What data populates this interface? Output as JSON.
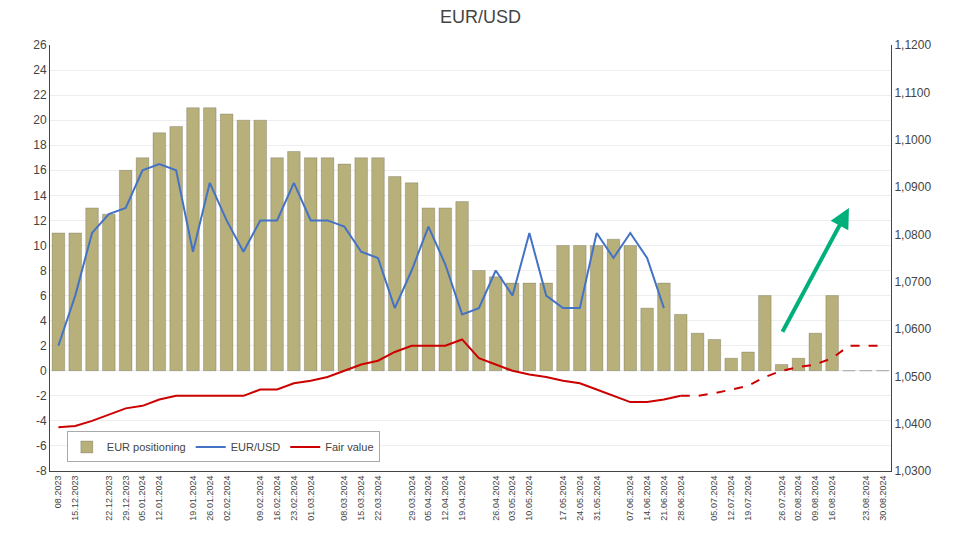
{
  "chart_data": {
    "type": "bar",
    "title": "EUR/USD",
    "categories": [
      "08.2023",
      "15.12.2023",
      null,
      "22.12.2023",
      "29.12.2023",
      "05.01.2024",
      "12.01.2024",
      null,
      "19.01.2024",
      "26.01.2024",
      "02.02.2024",
      null,
      "09.02.2024",
      "16.02.2024",
      "23.02.2024",
      "01.03.2024",
      null,
      "08.03.2024",
      "15.03.2024",
      "22.03.2024",
      null,
      "29.03.2024",
      "05.04.2024",
      "12.04.2024",
      "19.04.2024",
      null,
      "26.04.2024",
      "03.05.2024",
      "10.05.2024",
      null,
      "17.05.2024",
      "24.05.2024",
      "31.05.2024",
      null,
      "07.06.2024",
      "14.06.2024",
      "21.06.2024",
      "28.06.2024",
      null,
      "05.07.2024",
      "12.07.2024",
      "19.07.2024",
      null,
      "26.07.2024",
      "02.08.2024",
      "09.08.2024",
      "16.08.2024",
      null,
      "23.08.2024",
      "30.08.2024"
    ],
    "series": [
      {
        "name": "EUR positioning",
        "type": "bar",
        "color": "#b8b07a",
        "values": [
          11,
          11,
          13,
          12.5,
          16,
          17,
          19,
          19.5,
          21,
          21,
          20.5,
          20,
          20,
          17,
          17.5,
          17,
          17,
          16.5,
          17,
          17,
          15.5,
          15,
          13,
          13,
          13.5,
          8,
          7.5,
          7,
          7,
          7,
          10,
          10,
          10,
          10.5,
          10,
          5,
          7,
          4.5,
          3,
          2.5,
          1,
          1.5,
          6,
          0.5,
          1,
          3,
          6,
          0,
          0,
          0
        ]
      },
      {
        "name": "EUR/USD",
        "type": "line",
        "color": "#4472c4",
        "line_style": "solid",
        "values": [
          2,
          6,
          11,
          12.5,
          13,
          16,
          16.5,
          16,
          9.5,
          15,
          12,
          9.5,
          12,
          12,
          15,
          12,
          12,
          11.5,
          9.5,
          9,
          5,
          8,
          11.5,
          8.5,
          4.5,
          5,
          8,
          6,
          11,
          6,
          5,
          5,
          11,
          9,
          11,
          9,
          5,
          null,
          null,
          null,
          null,
          null,
          null,
          null,
          null,
          null,
          null,
          null,
          null,
          null
        ]
      },
      {
        "name": "Fair value",
        "type": "line",
        "color": "#cc0000",
        "line_style": "solid",
        "values": [
          -4.5,
          -4.4,
          -4,
          -3.5,
          -3,
          -2.8,
          -2.3,
          -2,
          -2,
          -2,
          -2,
          -2,
          -1.5,
          -1.5,
          -1,
          -0.8,
          -0.5,
          0,
          0.5,
          0.8,
          1.5,
          2,
          2,
          2,
          2.5,
          1,
          0.5,
          0,
          -0.3,
          -0.5,
          -0.8,
          -1,
          -1.5,
          -2,
          -2.5,
          -2.5,
          -2.3,
          -2,
          null,
          null,
          null,
          null,
          null,
          null,
          null,
          null,
          null,
          null,
          null,
          null
        ]
      },
      {
        "name": "Fair value",
        "type": "line",
        "color": "#cc0000",
        "line_style": "dashed",
        "values": [
          null,
          null,
          null,
          null,
          null,
          null,
          null,
          null,
          null,
          null,
          null,
          null,
          null,
          null,
          null,
          null,
          null,
          null,
          null,
          null,
          null,
          null,
          null,
          null,
          null,
          null,
          null,
          null,
          null,
          null,
          null,
          null,
          null,
          null,
          null,
          null,
          null,
          -2,
          -2,
          -1.8,
          -1.5,
          -1.2,
          -0.5,
          0,
          0.3,
          0.5,
          1.0,
          2,
          2,
          2
        ]
      }
    ],
    "ylim": [
      -8,
      26
    ],
    "yticks": [
      -8,
      -6,
      -4,
      -2,
      0,
      2,
      4,
      6,
      8,
      10,
      12,
      14,
      16,
      18,
      20,
      22,
      24,
      26
    ],
    "y2lim": [
      1.03,
      1.12
    ],
    "y2ticks": [
      {
        "value": 1.03,
        "label": "1,0300"
      },
      {
        "value": 1.04,
        "label": "1,0400"
      },
      {
        "value": 1.05,
        "label": "1,0500"
      },
      {
        "value": 1.06,
        "label": "1,0600"
      },
      {
        "value": 1.07,
        "label": "1,0700"
      },
      {
        "value": 1.08,
        "label": "1,0800"
      },
      {
        "value": 1.09,
        "label": "1,0900"
      },
      {
        "value": 1.1,
        "label": "1,1000"
      },
      {
        "value": 1.11,
        "label": "1,1100"
      },
      {
        "value": 1.12,
        "label": "1,1200"
      }
    ],
    "grid": true,
    "legend": "lower left",
    "arrow": {
      "x_start": 43,
      "y_start": 3,
      "x_end": 47,
      "y_end": 13,
      "color": "#00b07a"
    }
  }
}
